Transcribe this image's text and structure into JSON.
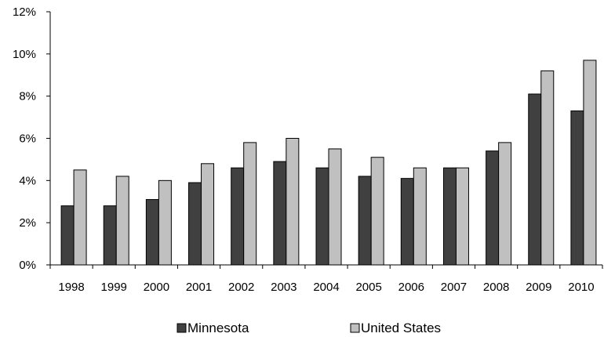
{
  "chart_data": {
    "type": "bar",
    "title": "",
    "xlabel": "",
    "ylabel": "",
    "categories": [
      "1998",
      "1999",
      "2000",
      "2001",
      "2002",
      "2003",
      "2004",
      "2005",
      "2006",
      "2007",
      "2008",
      "2009",
      "2010"
    ],
    "series": [
      {
        "name": "Minnesota",
        "color": "#404040",
        "values": [
          2.8,
          2.8,
          3.1,
          3.9,
          4.6,
          4.9,
          4.6,
          4.2,
          4.1,
          4.6,
          5.4,
          8.1,
          7.3
        ]
      },
      {
        "name": "United States",
        "color": "#c0c0c0",
        "values": [
          4.5,
          4.2,
          4.0,
          4.8,
          5.8,
          6.0,
          5.5,
          5.1,
          4.6,
          4.6,
          5.8,
          9.2,
          9.7
        ]
      }
    ],
    "ylim": [
      0,
      12
    ],
    "y_ticks": [
      0,
      2,
      4,
      6,
      8,
      10,
      12
    ],
    "y_tick_labels": [
      "0%",
      "2%",
      "4%",
      "6%",
      "8%",
      "10%",
      "12%"
    ],
    "grid": false,
    "legend_position": "bottom"
  }
}
